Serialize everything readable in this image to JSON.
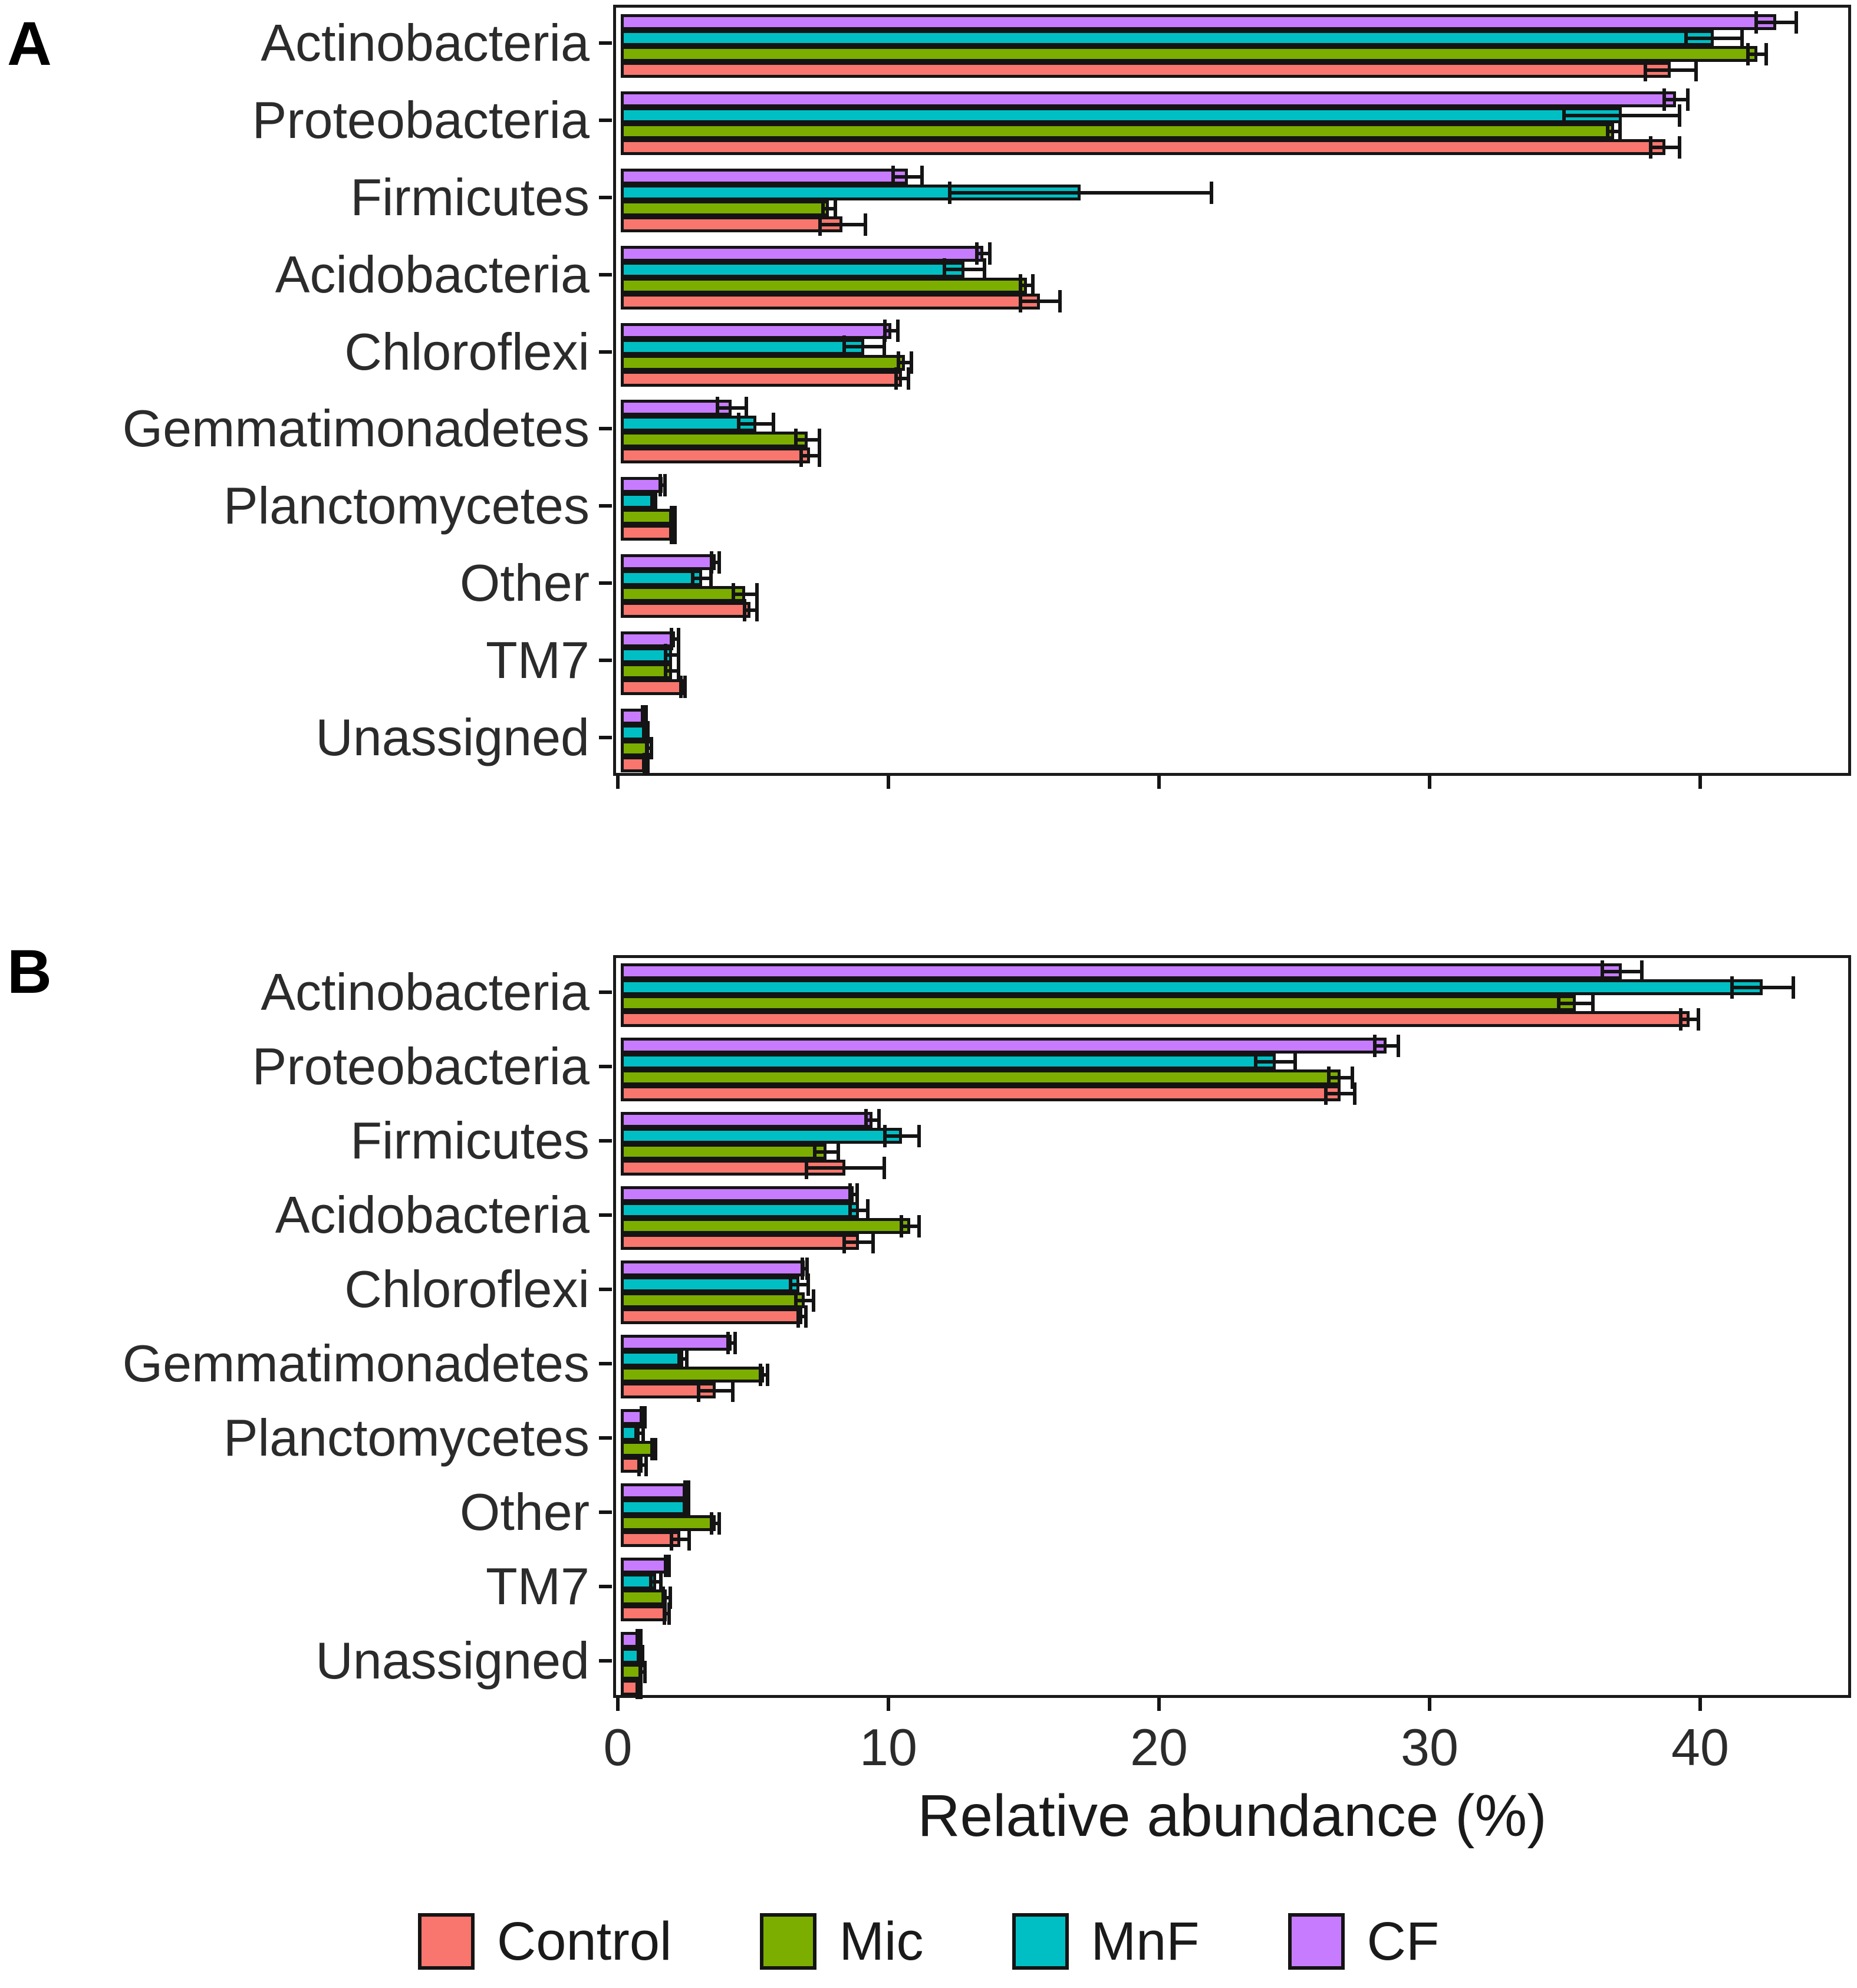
{
  "figure": {
    "panel_a_label": "A",
    "panel_b_label": "B",
    "xlabel": "Relative abundance (%)"
  },
  "colors": {
    "control": "#F8766D",
    "mic": "#7CAE00",
    "mnf": "#00BFC4",
    "cf": "#C77CFF",
    "outline": "#141414"
  },
  "legend": {
    "items": [
      {
        "label": "Control",
        "color": "#F8766D"
      },
      {
        "label": "Mic",
        "color": "#7CAE00"
      },
      {
        "label": "MnF",
        "color": "#00BFC4"
      },
      {
        "label": "CF",
        "color": "#C77CFF"
      }
    ]
  },
  "chart_data": [
    {
      "panel": "A",
      "type": "bar",
      "orientation": "horizontal",
      "title": "",
      "xlabel": "Relative abundance (%)",
      "xlim": [
        0,
        45.5
      ],
      "x_ticks": [
        0,
        10,
        20,
        30,
        40
      ],
      "grid": false,
      "legend_position": "bottom",
      "bar_order_top_to_bottom": [
        "CF",
        "MnF",
        "Mic",
        "Control"
      ],
      "categories": [
        "Actinobacteria",
        "Proteobacteria",
        "Firmicutes",
        "Acidobacteria",
        "Chloroflexi",
        "Gemmatimonadetes",
        "Planctomycetes",
        "Other",
        "TM7",
        "Unassigned"
      ],
      "series": [
        {
          "name": "Control",
          "color": "#F8766D",
          "values": [
            38.8,
            38.6,
            8.2,
            15.5,
            10.4,
            7.0,
            1.9,
            4.8,
            2.3,
            0.9
          ],
          "errors": [
            1.0,
            0.6,
            0.9,
            0.8,
            0.3,
            0.4,
            0.1,
            0.3,
            0.15,
            0.1
          ]
        },
        {
          "name": "Mic",
          "color": "#7CAE00",
          "values": [
            42.0,
            36.7,
            7.7,
            15.0,
            10.5,
            6.9,
            1.9,
            4.6,
            1.9,
            1.05
          ],
          "errors": [
            0.4,
            0.3,
            0.3,
            0.3,
            0.3,
            0.5,
            0.1,
            0.5,
            0.3,
            0.15
          ]
        },
        {
          "name": "MnF",
          "color": "#00BFC4",
          "values": [
            40.4,
            37.0,
            17.0,
            12.7,
            9.0,
            5.0,
            1.2,
            3.0,
            1.9,
            0.9
          ],
          "errors": [
            1.1,
            2.2,
            4.9,
            0.8,
            0.8,
            0.7,
            0.1,
            0.4,
            0.3,
            0.1
          ]
        },
        {
          "name": "CF",
          "color": "#C77CFF",
          "values": [
            42.7,
            39.0,
            10.6,
            13.4,
            10.0,
            4.1,
            1.55,
            3.5,
            2.0,
            0.85
          ],
          "errors": [
            0.8,
            0.5,
            0.6,
            0.3,
            0.3,
            0.6,
            0.15,
            0.2,
            0.2,
            0.1
          ]
        }
      ]
    },
    {
      "panel": "B",
      "type": "bar",
      "orientation": "horizontal",
      "title": "",
      "xlabel": "Relative abundance (%)",
      "xlim": [
        0,
        45.5
      ],
      "x_ticks": [
        0,
        10,
        20,
        30,
        40
      ],
      "grid": false,
      "legend_position": "bottom",
      "bar_order_top_to_bottom": [
        "CF",
        "MnF",
        "Mic",
        "Control"
      ],
      "categories": [
        "Actinobacteria",
        "Proteobacteria",
        "Firmicutes",
        "Acidobacteria",
        "Chloroflexi",
        "Gemmatimonadetes",
        "Planctomycetes",
        "Other",
        "TM7",
        "Unassigned"
      ],
      "series": [
        {
          "name": "Control",
          "color": "#F8766D",
          "values": [
            39.5,
            26.6,
            8.3,
            8.8,
            6.7,
            3.5,
            0.8,
            2.2,
            1.7,
            0.65
          ],
          "errors": [
            0.4,
            0.6,
            1.5,
            0.6,
            0.2,
            0.7,
            0.2,
            0.4,
            0.15,
            0.1
          ]
        },
        {
          "name": "Mic",
          "color": "#7CAE00",
          "values": [
            35.3,
            26.6,
            7.6,
            10.7,
            6.8,
            5.3,
            1.2,
            3.5,
            1.7,
            0.8
          ],
          "errors": [
            0.7,
            0.5,
            0.5,
            0.4,
            0.4,
            0.2,
            0.1,
            0.2,
            0.2,
            0.15
          ]
        },
        {
          "name": "MnF",
          "color": "#00BFC4",
          "values": [
            42.2,
            24.2,
            10.4,
            8.8,
            6.6,
            2.3,
            0.7,
            2.4,
            1.3,
            0.7
          ],
          "errors": [
            1.2,
            0.8,
            0.7,
            0.4,
            0.4,
            0.2,
            0.2,
            0.1,
            0.25,
            0.1
          ]
        },
        {
          "name": "CF",
          "color": "#C77CFF",
          "values": [
            37.0,
            28.3,
            9.3,
            8.6,
            6.8,
            4.1,
            0.8,
            2.4,
            1.7,
            0.65
          ],
          "errors": [
            0.8,
            0.5,
            0.3,
            0.2,
            0.15,
            0.2,
            0.1,
            0.1,
            0.1,
            0.1
          ]
        }
      ]
    }
  ]
}
